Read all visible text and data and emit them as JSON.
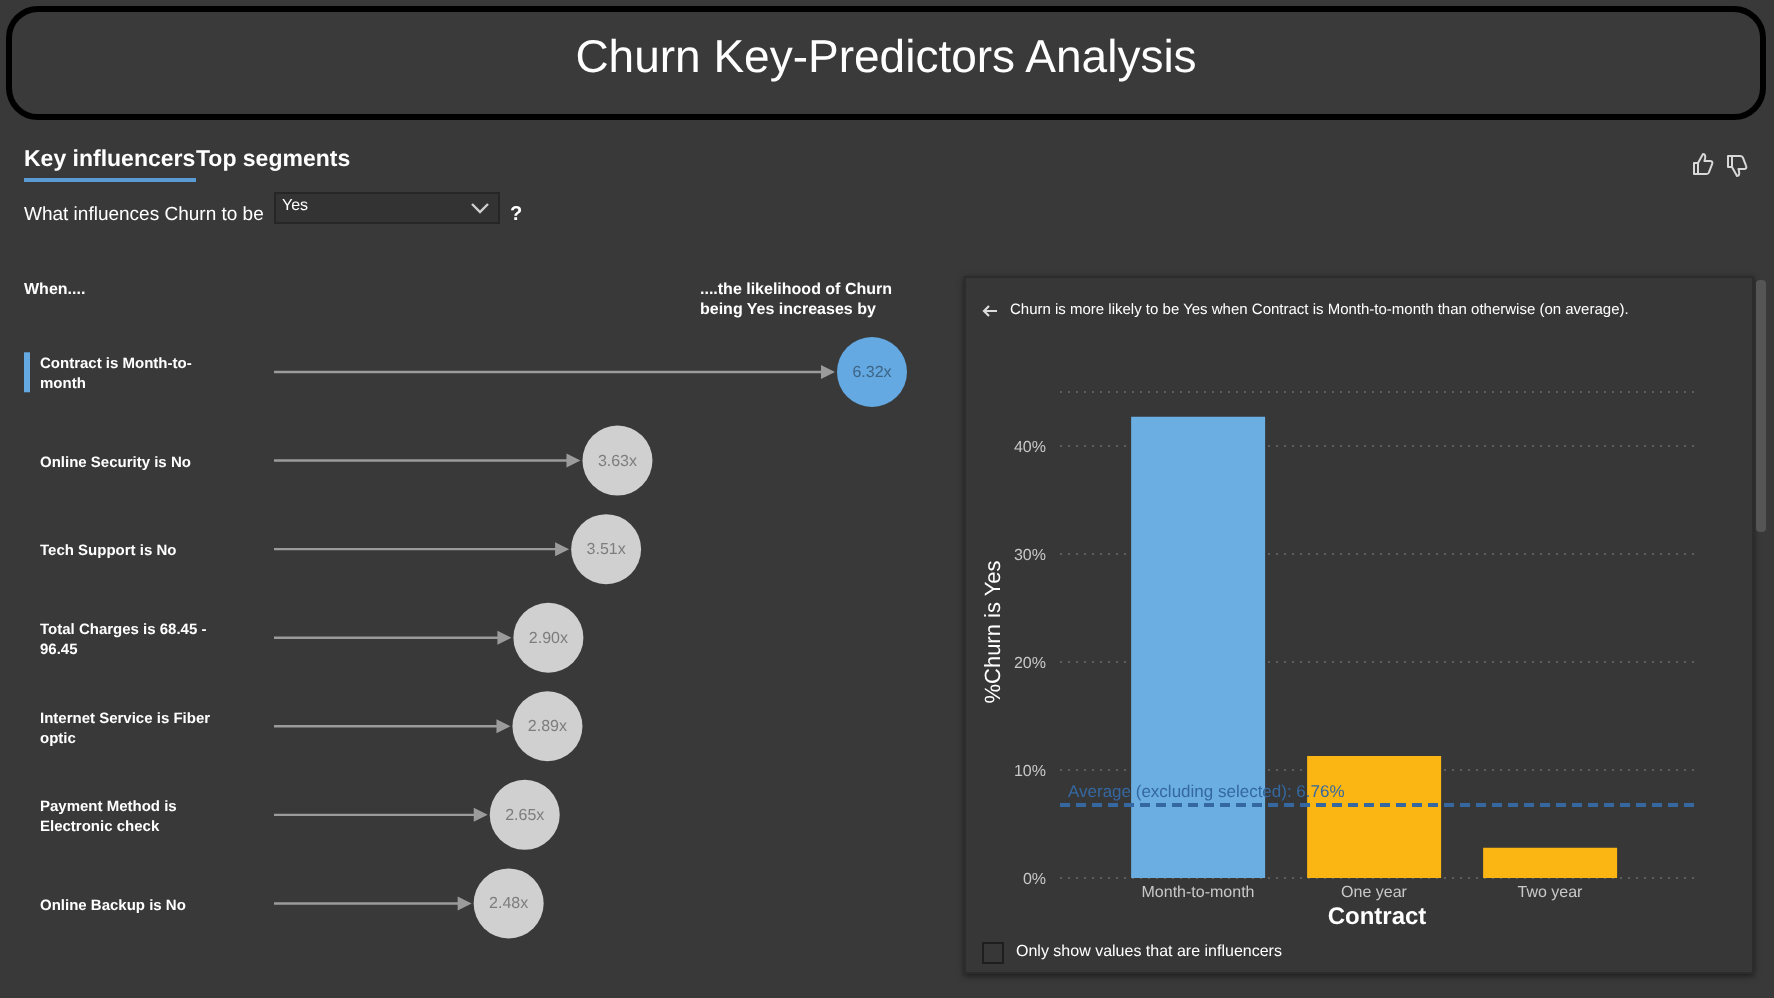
{
  "chart_data": [
    {
      "type": "lollipop",
      "orientation": "horizontal",
      "title": "Churn Key-Predictors Analysis",
      "xlabel": "....the likelihood of Churn being Yes increases by",
      "ylabel": "When....",
      "categories": [
        "Contract is Month-to-month",
        "Online Security is No",
        "Tech Support is No",
        "Total Charges is 68.45 - 96.45",
        "Internet Service is Fiber optic",
        "Payment Method is Electronic check",
        "Online Backup is No"
      ],
      "values": [
        6.32,
        3.63,
        3.51,
        2.9,
        2.89,
        2.65,
        2.48
      ],
      "value_labels": [
        "6.32x",
        "3.63x",
        "3.51x",
        "2.90x",
        "2.89x",
        "2.65x",
        "2.48x"
      ],
      "colors": [
        "#64a9e1",
        "#d0d0d0",
        "#d0d0d0",
        "#d0d0d0",
        "#d0d0d0",
        "#d0d0d0",
        "#d0d0d0"
      ],
      "tick_labels": "y",
      "annotations": [
        "Key influencers",
        "Top segments",
        "What influences Churn to be",
        "Yes",
        "?"
      ]
    },
    {
      "type": "bar",
      "title": "Churn is more likely to be Yes when Contract is Month-to-month than otherwise (on average).",
      "xlabel": "Contract",
      "ylabel": "%Churn is Yes",
      "categories": [
        "Month-to-month",
        "One year",
        "Two year"
      ],
      "values": [
        42.7,
        11.3,
        2.8
      ],
      "colors": [
        "#6aaee2",
        "#fbb614",
        "#fbb614"
      ],
      "ylim": [
        0,
        45
      ],
      "yticks": [
        {
          "value": 0,
          "label": "0%"
        },
        {
          "value": 10,
          "label": "10%"
        },
        {
          "value": 20,
          "label": "20%"
        },
        {
          "value": 30,
          "label": "30%"
        },
        {
          "value": 40,
          "label": "40%"
        }
      ],
      "grid": "y",
      "ref_lines": [
        {
          "axis": "y",
          "value": 6.76,
          "label": "Average (excluding selected): 6.76%",
          "color": "#3568a0",
          "line_style": "dashed"
        }
      ],
      "annotations": [
        "Only show values that are influencers"
      ]
    }
  ]
}
